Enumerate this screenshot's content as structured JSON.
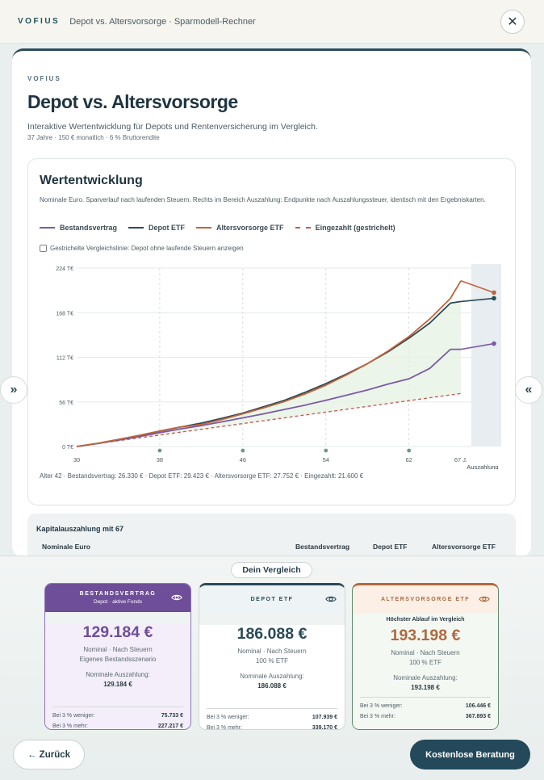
{
  "topbar": {
    "brand": "VOFIUS",
    "title": "Depot vs. Altersvorsorge · Sparmodell-Rechner",
    "close_icon": "close-icon"
  },
  "header": {
    "kicker": "VOFIUS",
    "title": "Depot vs. Altersvorsorge",
    "subtitle": "Interaktive Wertentwicklung für Depots und Rentenversicherung im Vergleich.",
    "meta": "37 Jahre · 150 € monatlich · 6 % Bruttorendite"
  },
  "chart_card": {
    "title": "Wertentwicklung",
    "description": "Nominale Euro. Sparverlauf nach laufenden Steuern. Rechts im Bereich Auszahlung: Endpunkte nach Auszahlungssteuer, identisch mit den Ergebniskarten.",
    "legend": [
      {
        "label": "Bestandsvertrag",
        "color": "#7b5aa6",
        "style": "solid"
      },
      {
        "label": "Depot ETF",
        "color": "#2a4a57",
        "style": "solid"
      },
      {
        "label": "Altersvorsorge ETF",
        "color": "#c0643a",
        "style": "solid"
      },
      {
        "label": "Eingezahlt (gestrichelt)",
        "color": "#c9584f",
        "style": "dashed"
      }
    ],
    "checkbox_label": "Gestrichelte Vergleichslinie: Depot ohne laufende Steuern anzeigen",
    "checkbox_checked": false,
    "alter_info": "Alter 42 · Bestandsvertrag: 26.330 € · Depot ETF: 29.423 € · Altersvorsorge ETF: 27.752 € · Eingezahlt: 21.600 €"
  },
  "chart_data": {
    "type": "line",
    "xlabel": "",
    "ylabel": "",
    "x_ticks": [
      "30",
      "38",
      "46",
      "54",
      "62",
      "67 J."
    ],
    "x_extra_label": "Auszahlung",
    "y_ticks": [
      "0 T€",
      "56 T€",
      "112 T€",
      "168 T€",
      "224 T€"
    ],
    "ylim": [
      0,
      224
    ],
    "xlim": [
      30,
      67
    ],
    "grid": true,
    "milestones": [
      38,
      46,
      54,
      62
    ],
    "x": [
      30,
      32,
      34,
      36,
      38,
      40,
      42,
      44,
      46,
      48,
      50,
      52,
      54,
      56,
      58,
      60,
      62,
      64,
      66,
      67
    ],
    "series": [
      {
        "name": "Bestandsvertrag",
        "values": [
          0,
          3.8,
          8,
          12.5,
          17.3,
          22,
          26.3,
          31,
          36,
          41,
          46.5,
          52,
          58,
          64.5,
          71,
          78.5,
          85,
          98,
          122,
          122
        ],
        "payout": 129.2
      },
      {
        "name": "Depot ETF",
        "values": [
          0,
          4,
          8.7,
          13.8,
          19.3,
          24.4,
          29.4,
          35.5,
          42,
          50,
          58,
          68,
          79,
          91,
          104,
          119,
          136,
          155,
          180,
          182
        ],
        "payout": 186.1
      },
      {
        "name": "Altersvorsorge ETF",
        "values": [
          0,
          4,
          8.8,
          14,
          19.5,
          24.5,
          27.75,
          34,
          41,
          48.5,
          56.5,
          66,
          77,
          90,
          104,
          120,
          138,
          160,
          186,
          208
        ],
        "payout": 193.2
      },
      {
        "name": "Eingezahlt (gestrichelt)",
        "values": [
          0,
          3.6,
          7.2,
          10.8,
          14.4,
          18,
          21.6,
          25.2,
          28.8,
          32.4,
          36,
          39.6,
          43.2,
          46.8,
          50.4,
          54,
          57.6,
          61.2,
          64.8,
          66.6
        ]
      }
    ]
  },
  "payout_table": {
    "title": "Kapitalauszahlung mit 67",
    "columns": [
      "Nominale Euro",
      "Bestandsvertrag",
      "Depot ETF",
      "Altersvorsorge ETF"
    ]
  },
  "nav": {
    "left_arrow": "»",
    "right_arrow": "«"
  },
  "compare": {
    "label": "Dein Vergleich"
  },
  "cards": [
    {
      "name": "BESTANDSVERTRAG",
      "extra": "Depot · aktive Fonds",
      "amount": "129.184 €",
      "line1": "Nominal · Nach Steuern",
      "line2": "Eigenes Bestandsszenario",
      "payout_label": "Nominale Auszahlung:",
      "payout_value": "129.184 €",
      "less_label": "Bei 3 % weniger:",
      "less_value": "75.733 €",
      "more_label": "Bei 3 % mehr:",
      "more_value": "227.217 €",
      "accent": "#6e4e98"
    },
    {
      "name": "DEPOT ETF",
      "extra": "",
      "amount": "186.088 €",
      "line1": "Nominal · Nach Steuern",
      "line2": "100 % ETF",
      "payout_label": "Nominale Auszahlung:",
      "payout_value": "186.088 €",
      "less_label": "Bei 3 % weniger:",
      "less_value": "107.939 €",
      "more_label": "Bei 3 % mehr:",
      "more_value": "339.170 €",
      "accent": "#2a4a57"
    },
    {
      "name": "ALTERSVORSORGE ETF",
      "extra": "Höchster Ablauf im Vergleich",
      "amount": "193.198 €",
      "line1": "Nominal · Nach Steuern",
      "line2": "100 % ETF",
      "payout_label": "Nominale Auszahlung:",
      "payout_value": "193.198 €",
      "less_label": "Bei 3 % weniger:",
      "less_value": "106.446 €",
      "more_label": "Bei 3 % mehr:",
      "more_value": "367.893 €",
      "accent": "#b1693d"
    }
  ],
  "footer": {
    "back_label": "← Zurück",
    "cta_label": "Kostenlose Beratung"
  }
}
